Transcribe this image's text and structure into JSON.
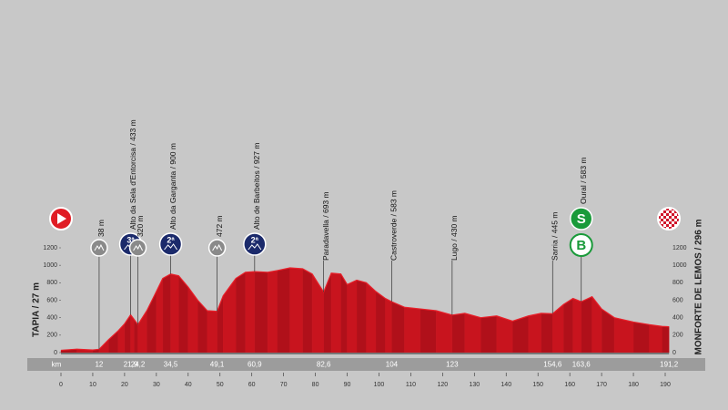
{
  "chart_data": {
    "type": "area",
    "start_label": "TAPIA / 27 m",
    "finish_label": "MONFORTE DE LEMOS / 296 m",
    "x": [
      0,
      5,
      10,
      12,
      15,
      18,
      20,
      21.9,
      23,
      24.2,
      27,
      30,
      32,
      34.5,
      37,
      40,
      43,
      46,
      49.1,
      51,
      55,
      58,
      60.9,
      65,
      68,
      72,
      76,
      79,
      82.6,
      85,
      88,
      90,
      93,
      96,
      99,
      102,
      104,
      108,
      113,
      118,
      123,
      127,
      132,
      137,
      142,
      147,
      151,
      154.6,
      158,
      161,
      163.6,
      167,
      170,
      174,
      180,
      185,
      189,
      191.2
    ],
    "values": [
      27,
      40,
      30,
      38,
      150,
      250,
      330,
      433,
      380,
      320,
      480,
      700,
      850,
      900,
      880,
      750,
      600,
      480,
      472,
      650,
      850,
      920,
      927,
      920,
      940,
      970,
      960,
      900,
      693,
      910,
      900,
      780,
      830,
      800,
      700,
      620,
      583,
      520,
      500,
      480,
      430,
      450,
      400,
      420,
      360,
      420,
      450,
      445,
      550,
      620,
      583,
      640,
      500,
      400,
      350,
      320,
      300,
      296
    ],
    "color": "#c8141e",
    "xlim": [
      0,
      190
    ],
    "ylim": [
      0,
      1200
    ],
    "xticks": [
      0,
      10,
      20,
      30,
      40,
      50,
      60,
      70,
      80,
      90,
      100,
      110,
      120,
      130,
      140,
      150,
      160,
      170,
      180,
      190
    ],
    "yticks": [
      0,
      200,
      400,
      600,
      800,
      1000,
      1200
    ],
    "km_label": "km",
    "km_marks": [
      12,
      {
        "value": 21.9,
        "label": "21,9"
      },
      {
        "value": 24.2,
        "label": "24,2"
      },
      {
        "value": 34.5,
        "label": "34,5"
      },
      {
        "value": 49.1,
        "label": "49,1"
      },
      {
        "value": 60.9,
        "label": "60,9"
      },
      {
        "value": 82.6,
        "label": "82,6"
      },
      104,
      123,
      {
        "value": 154.6,
        "label": "154,6"
      },
      {
        "value": 163.6,
        "label": "163,6"
      },
      {
        "value": 191.2,
        "label": "191,2"
      }
    ],
    "points": [
      {
        "label": "38 m",
        "icon": "gray"
      },
      {
        "label": "Alto da Sela d'Entorcisa / 433 m",
        "icon": "climb",
        "category": "3ª"
      },
      {
        "label": "320 m",
        "icon": "gray"
      },
      {
        "label": "Alto da Garganta / 900 m",
        "icon": "climb",
        "category": "2ª"
      },
      {
        "label": "472 m",
        "icon": "gray"
      },
      {
        "label": "Alto de Barbeitos / 927 m",
        "icon": "climb",
        "category": "2ª"
      },
      {
        "label": "Paradavella / 693 m",
        "icon": "none"
      },
      {
        "label": "Castroverde / 583 m",
        "icon": "none"
      },
      {
        "label": "Lugo / 430 m",
        "icon": "none"
      },
      {
        "label": "Sarria / 445 m",
        "icon": "none"
      },
      {
        "label": "Oural / 583 m",
        "icon": "sprint",
        "category": "S",
        "bonus": "B"
      }
    ]
  }
}
